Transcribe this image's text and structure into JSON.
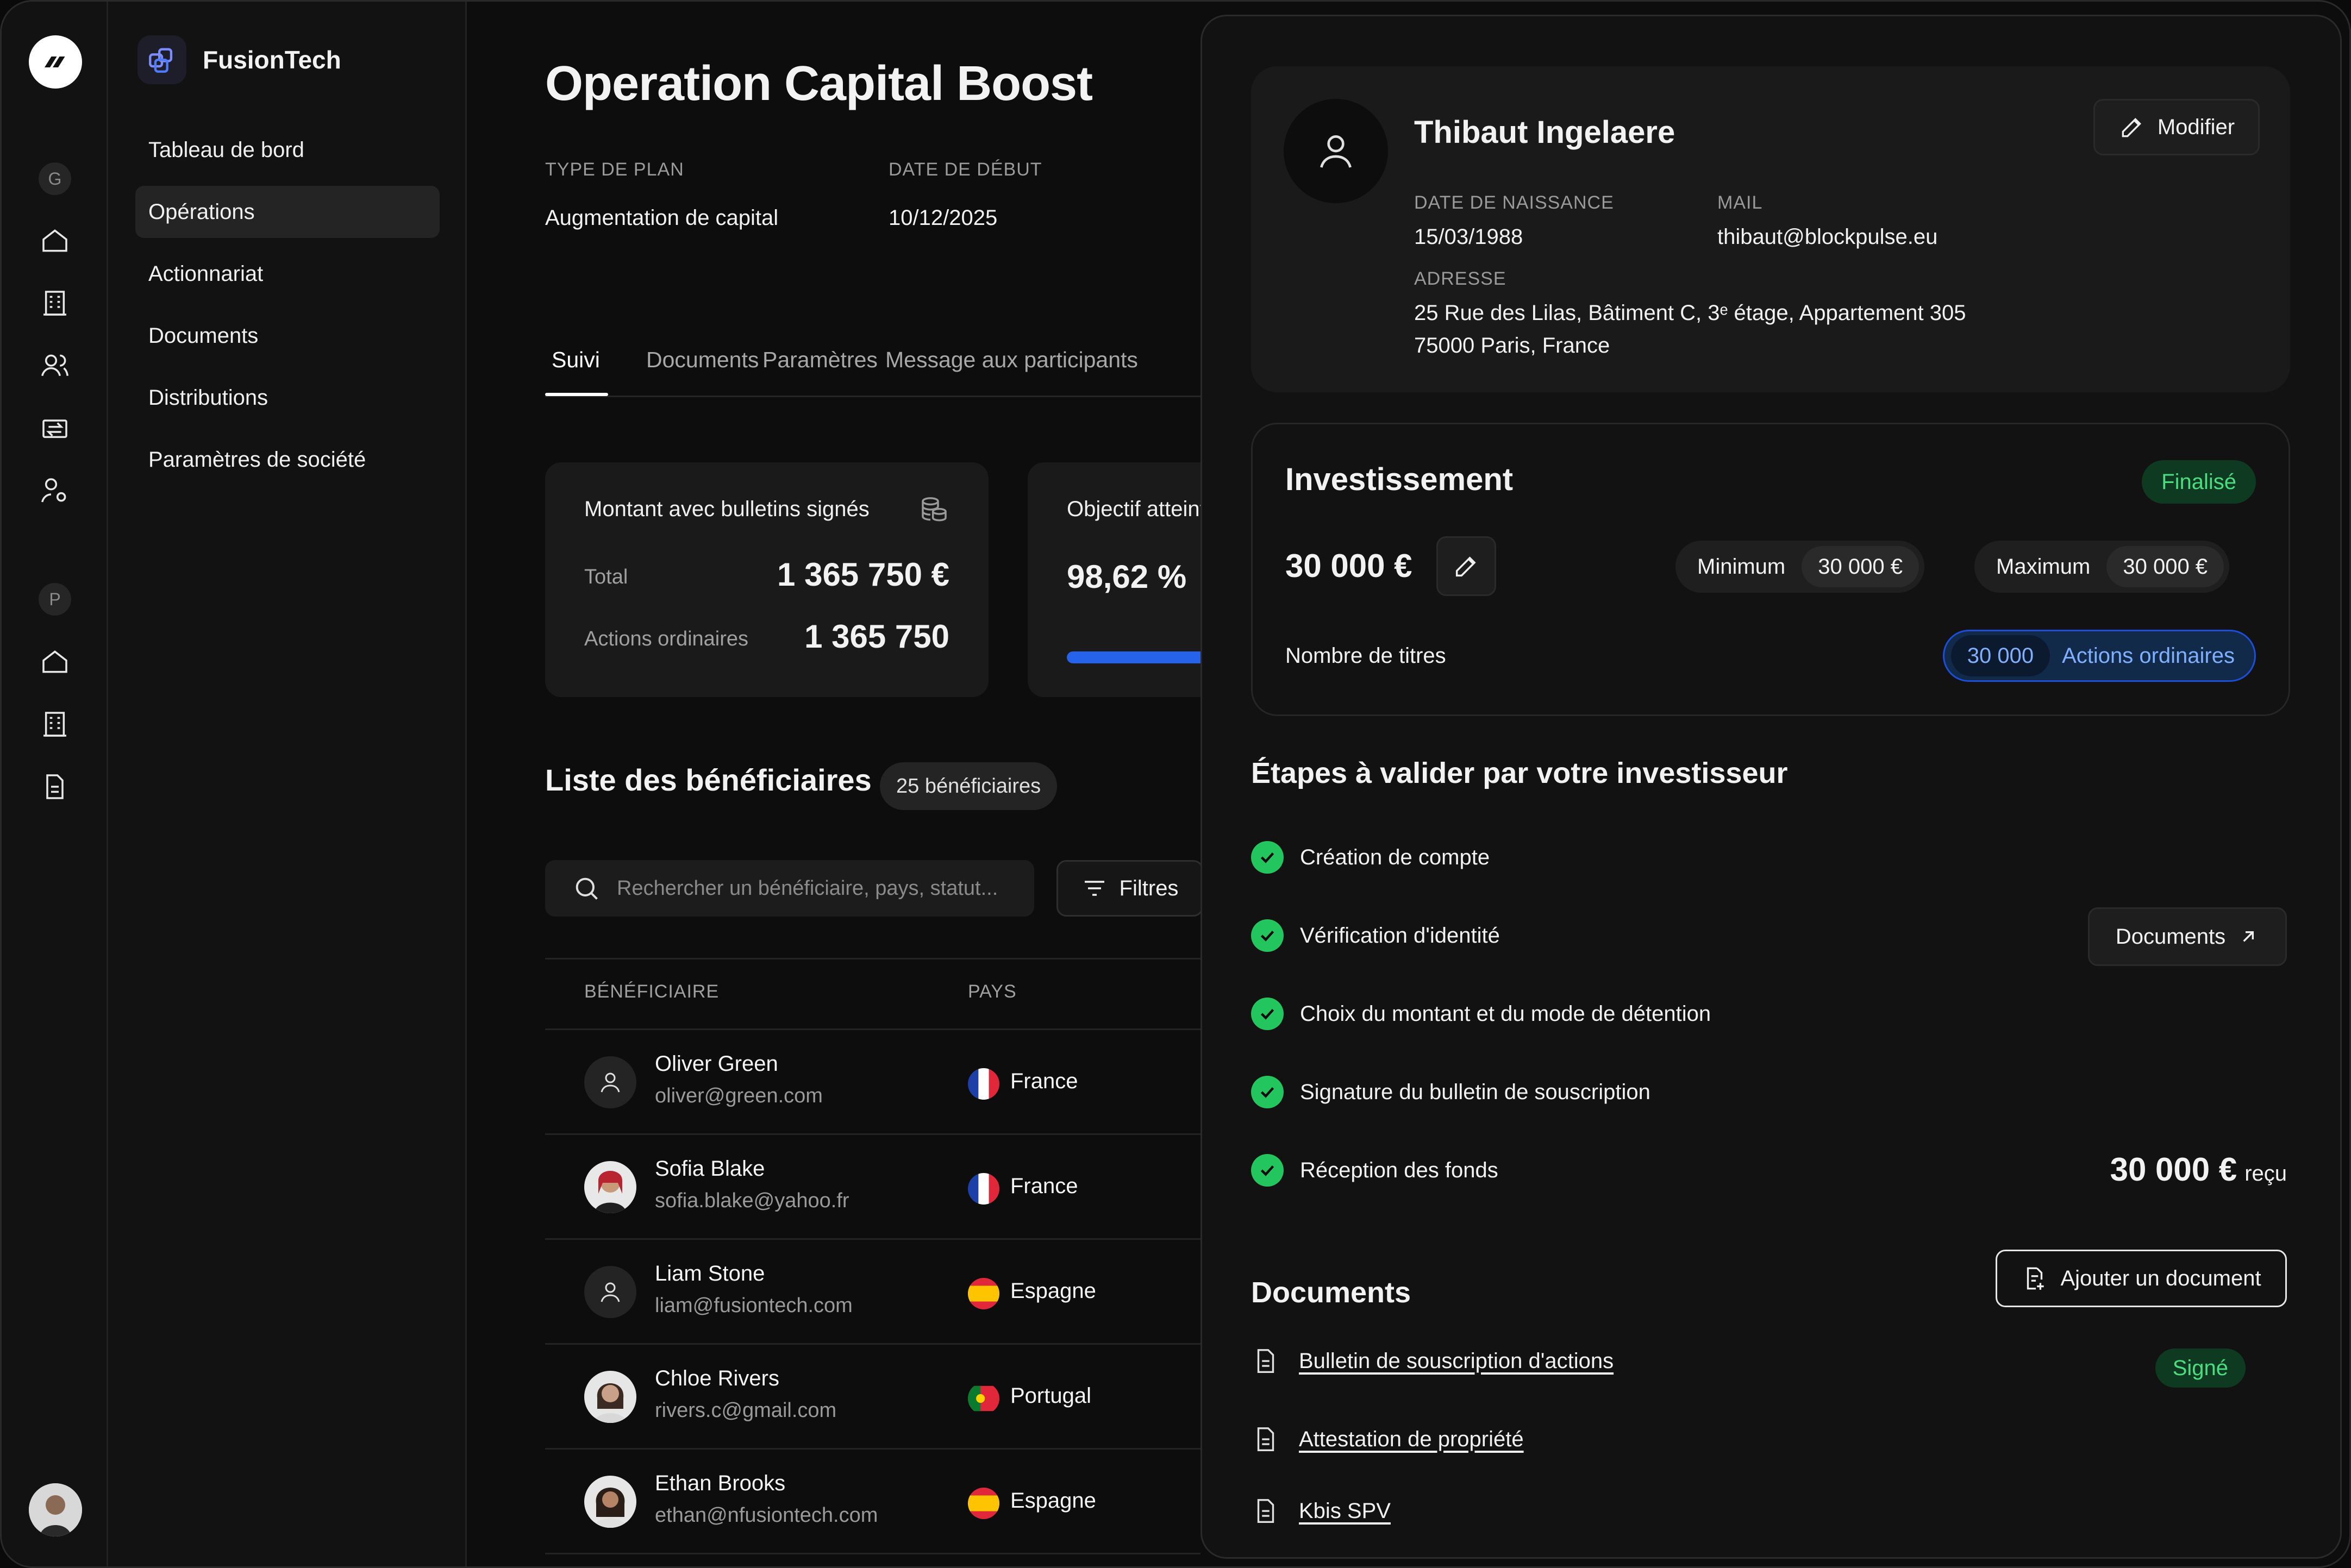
{
  "sidebar": {
    "brand": "FusionTech",
    "workspace_letters": [
      "G",
      "P"
    ],
    "items": [
      "Tableau de bord",
      "Opérations",
      "Actionnariat",
      "Documents",
      "Distributions",
      "Paramètres de société"
    ]
  },
  "operation": {
    "title": "Operation Capital Boost",
    "plan_type_label": "TYPE DE PLAN",
    "plan_type": "Augmentation de capital",
    "start_label": "DATE DE DÉBUT",
    "start_date": "10/12/2025"
  },
  "tabs": [
    "Suivi",
    "Documents",
    "Paramètres",
    "Message aux participants"
  ],
  "stats": {
    "signed_title": "Montant avec bulletins signés",
    "total_label": "Total",
    "total_value": "1 365 750 €",
    "shares_label": "Actions ordinaires",
    "shares_value": "1 365 750",
    "objective_title": "Objectif atteint",
    "objective_value": "98,62 %",
    "objective_progress": 0.9862
  },
  "beneficiaries": {
    "title": "Liste des bénéficiaires",
    "count": "25 bénéficiaires",
    "search_placeholder": "Rechercher un bénéficiaire, pays, statut...",
    "filter_label": "Filtres",
    "col_beneficiary": "BÉNÉFICIAIRE",
    "col_country": "PAYS",
    "rows": [
      {
        "name": "Oliver Green",
        "email": "oliver@green.com",
        "country": "France"
      },
      {
        "name": "Sofia Blake",
        "email": "sofia.blake@yahoo.fr",
        "country": "France"
      },
      {
        "name": "Liam Stone",
        "email": "liam@fusiontech.com",
        "country": "Espagne"
      },
      {
        "name": "Chloe Rivers",
        "email": "rivers.c@gmail.com",
        "country": "Portugal"
      },
      {
        "name": "Ethan Brooks",
        "email": "ethan@nfusiontech.com",
        "country": "Espagne"
      }
    ]
  },
  "investor": {
    "name": "Thibaut Ingelaere",
    "edit_label": "Modifier",
    "birth_label": "DATE DE NAISSANCE",
    "birth_date": "15/03/1988",
    "mail_label": "MAIL",
    "mail": "thibaut@blockpulse.eu",
    "address_label": "ADRESSE",
    "address_line1": "25 Rue des Lilas, Bâtiment C, 3ᵉ étage, Appartement 305",
    "address_line2": "75000 Paris, France"
  },
  "investment": {
    "title": "Investissement",
    "status": "Finalisé",
    "amount": "30 000 €",
    "min_label": "Minimum",
    "min_value": "30 000 €",
    "max_label": "Maximum",
    "max_value": "30 000 €",
    "titles_label": "Nombre de titres",
    "titles_value": "30 000",
    "titles_type": "Actions ordinaires"
  },
  "steps": {
    "title": "Étapes à valider par votre investisseur",
    "items": [
      "Création de compte",
      "Vérification d'identité",
      "Choix du montant et du mode de détention",
      "Signature du bulletin de souscription",
      "Réception des fonds"
    ],
    "documents_button": "Documents",
    "received_amount": "30 000 €",
    "received_label": "reçu"
  },
  "documents": {
    "title": "Documents",
    "add_button": "Ajouter un document",
    "items": [
      "Bulletin de souscription d'actions",
      "Attestation de propriété",
      "Kbis SPV"
    ],
    "signed_badge": "Signé"
  },
  "colors": {
    "accent_blue": "#1d4ed8",
    "success": "#22c55e",
    "progress": "#2563eb"
  }
}
